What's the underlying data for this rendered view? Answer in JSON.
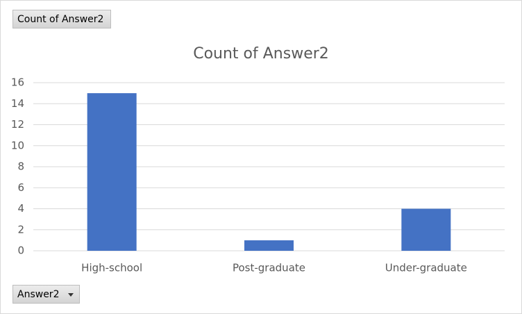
{
  "chart_data": {
    "type": "bar",
    "title": "Count of Answer2",
    "value_field_button": "Count of Answer2",
    "axis_field_button": "Answer2",
    "categories": [
      "High-school",
      "Post-graduate",
      "Under-graduate"
    ],
    "values": [
      15,
      1,
      4
    ],
    "color": "#4472c4",
    "ylim": [
      0,
      16
    ],
    "yticks": [
      0,
      2,
      4,
      6,
      8,
      10,
      12,
      14,
      16
    ],
    "grid": true
  }
}
